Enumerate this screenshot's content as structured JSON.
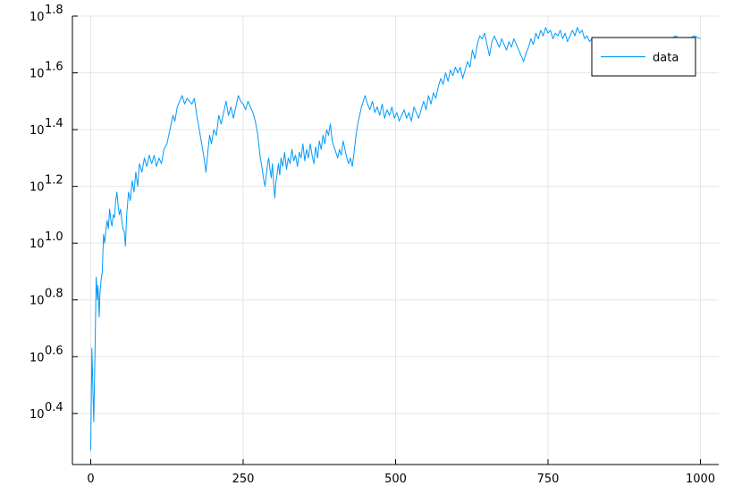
{
  "chart_data": {
    "type": "line",
    "xlim": [
      -30,
      1030
    ],
    "ylim": [
      0.22,
      1.8
    ],
    "y_scale": "log10",
    "grid": true,
    "legend_position": "top-right",
    "x_ticks": [
      {
        "value": 0,
        "label": "0"
      },
      {
        "value": 250,
        "label": "250"
      },
      {
        "value": 500,
        "label": "500"
      },
      {
        "value": 750,
        "label": "750"
      },
      {
        "value": 1000,
        "label": "1000"
      }
    ],
    "y_ticks": [
      {
        "value": 0.4,
        "base": "10",
        "exp": "0.4"
      },
      {
        "value": 0.6,
        "base": "10",
        "exp": "0.6"
      },
      {
        "value": 0.8,
        "base": "10",
        "exp": "0.8"
      },
      {
        "value": 1.0,
        "base": "10",
        "exp": "1.0"
      },
      {
        "value": 1.2,
        "base": "10",
        "exp": "1.2"
      },
      {
        "value": 1.4,
        "base": "10",
        "exp": "1.4"
      },
      {
        "value": 1.6,
        "base": "10",
        "exp": "1.6"
      },
      {
        "value": 1.8,
        "base": "10",
        "exp": "1.8"
      }
    ],
    "series": [
      {
        "name": "data",
        "color": "#009AFA",
        "points": [
          [
            0,
            0.27
          ],
          [
            2,
            0.63
          ],
          [
            4,
            0.45
          ],
          [
            5,
            0.37
          ],
          [
            7,
            0.6
          ],
          [
            9,
            0.88
          ],
          [
            11,
            0.8
          ],
          [
            12,
            0.85
          ],
          [
            14,
            0.74
          ],
          [
            15,
            0.82
          ],
          [
            17,
            0.87
          ],
          [
            19,
            0.9
          ],
          [
            21,
            1.03
          ],
          [
            23,
            1.0
          ],
          [
            25,
            1.05
          ],
          [
            27,
            1.08
          ],
          [
            29,
            1.05
          ],
          [
            31,
            1.12
          ],
          [
            33,
            1.08
          ],
          [
            35,
            1.06
          ],
          [
            37,
            1.1
          ],
          [
            39,
            1.09
          ],
          [
            41,
            1.15
          ],
          [
            43,
            1.18
          ],
          [
            45,
            1.13
          ],
          [
            47,
            1.1
          ],
          [
            49,
            1.12
          ],
          [
            51,
            1.08
          ],
          [
            53,
            1.05
          ],
          [
            55,
            1.04
          ],
          [
            57,
            0.99
          ],
          [
            59,
            1.1
          ],
          [
            62,
            1.18
          ],
          [
            65,
            1.15
          ],
          [
            68,
            1.22
          ],
          [
            71,
            1.18
          ],
          [
            74,
            1.25
          ],
          [
            77,
            1.2
          ],
          [
            80,
            1.28
          ],
          [
            84,
            1.25
          ],
          [
            88,
            1.3
          ],
          [
            92,
            1.27
          ],
          [
            96,
            1.31
          ],
          [
            100,
            1.28
          ],
          [
            104,
            1.31
          ],
          [
            108,
            1.27
          ],
          [
            112,
            1.3
          ],
          [
            116,
            1.28
          ],
          [
            120,
            1.33
          ],
          [
            125,
            1.35
          ],
          [
            130,
            1.4
          ],
          [
            135,
            1.45
          ],
          [
            138,
            1.43
          ],
          [
            142,
            1.48
          ],
          [
            146,
            1.5
          ],
          [
            150,
            1.52
          ],
          [
            154,
            1.49
          ],
          [
            158,
            1.51
          ],
          [
            162,
            1.5
          ],
          [
            166,
            1.49
          ],
          [
            170,
            1.51
          ],
          [
            174,
            1.45
          ],
          [
            178,
            1.4
          ],
          [
            182,
            1.35
          ],
          [
            186,
            1.3
          ],
          [
            189,
            1.25
          ],
          [
            192,
            1.32
          ],
          [
            195,
            1.38
          ],
          [
            198,
            1.35
          ],
          [
            202,
            1.4
          ],
          [
            206,
            1.38
          ],
          [
            210,
            1.45
          ],
          [
            214,
            1.42
          ],
          [
            218,
            1.46
          ],
          [
            222,
            1.5
          ],
          [
            226,
            1.45
          ],
          [
            230,
            1.48
          ],
          [
            234,
            1.44
          ],
          [
            238,
            1.48
          ],
          [
            242,
            1.52
          ],
          [
            246,
            1.5
          ],
          [
            250,
            1.49
          ],
          [
            254,
            1.47
          ],
          [
            258,
            1.5
          ],
          [
            262,
            1.48
          ],
          [
            266,
            1.46
          ],
          [
            270,
            1.43
          ],
          [
            274,
            1.38
          ],
          [
            278,
            1.3
          ],
          [
            280,
            1.28
          ],
          [
            282,
            1.25
          ],
          [
            284,
            1.22
          ],
          [
            286,
            1.2
          ],
          [
            288,
            1.24
          ],
          [
            290,
            1.28
          ],
          [
            292,
            1.3
          ],
          [
            294,
            1.26
          ],
          [
            296,
            1.23
          ],
          [
            298,
            1.28
          ],
          [
            300,
            1.21
          ],
          [
            302,
            1.16
          ],
          [
            304,
            1.22
          ],
          [
            306,
            1.25
          ],
          [
            308,
            1.28
          ],
          [
            310,
            1.24
          ],
          [
            312,
            1.3
          ],
          [
            315,
            1.27
          ],
          [
            318,
            1.32
          ],
          [
            321,
            1.26
          ],
          [
            324,
            1.3
          ],
          [
            327,
            1.28
          ],
          [
            330,
            1.33
          ],
          [
            333,
            1.29
          ],
          [
            336,
            1.31
          ],
          [
            339,
            1.27
          ],
          [
            342,
            1.32
          ],
          [
            345,
            1.3
          ],
          [
            348,
            1.35
          ],
          [
            351,
            1.29
          ],
          [
            354,
            1.33
          ],
          [
            357,
            1.3
          ],
          [
            360,
            1.35
          ],
          [
            363,
            1.31
          ],
          [
            366,
            1.28
          ],
          [
            369,
            1.34
          ],
          [
            372,
            1.3
          ],
          [
            375,
            1.36
          ],
          [
            378,
            1.33
          ],
          [
            381,
            1.38
          ],
          [
            384,
            1.35
          ],
          [
            387,
            1.4
          ],
          [
            390,
            1.38
          ],
          [
            393,
            1.42
          ],
          [
            396,
            1.36
          ],
          [
            399,
            1.34
          ],
          [
            402,
            1.32
          ],
          [
            405,
            1.3
          ],
          [
            408,
            1.33
          ],
          [
            411,
            1.31
          ],
          [
            414,
            1.36
          ],
          [
            417,
            1.33
          ],
          [
            420,
            1.3
          ],
          [
            423,
            1.28
          ],
          [
            426,
            1.3
          ],
          [
            429,
            1.27
          ],
          [
            432,
            1.32
          ],
          [
            435,
            1.38
          ],
          [
            438,
            1.42
          ],
          [
            441,
            1.45
          ],
          [
            444,
            1.48
          ],
          [
            447,
            1.5
          ],
          [
            450,
            1.52
          ],
          [
            454,
            1.49
          ],
          [
            458,
            1.47
          ],
          [
            462,
            1.5
          ],
          [
            466,
            1.46
          ],
          [
            470,
            1.48
          ],
          [
            474,
            1.45
          ],
          [
            478,
            1.49
          ],
          [
            482,
            1.44
          ],
          [
            486,
            1.47
          ],
          [
            490,
            1.45
          ],
          [
            494,
            1.48
          ],
          [
            498,
            1.44
          ],
          [
            502,
            1.46
          ],
          [
            506,
            1.43
          ],
          [
            510,
            1.45
          ],
          [
            514,
            1.47
          ],
          [
            518,
            1.44
          ],
          [
            522,
            1.46
          ],
          [
            526,
            1.43
          ],
          [
            530,
            1.48
          ],
          [
            534,
            1.46
          ],
          [
            538,
            1.44
          ],
          [
            542,
            1.47
          ],
          [
            546,
            1.5
          ],
          [
            550,
            1.47
          ],
          [
            554,
            1.52
          ],
          [
            558,
            1.49
          ],
          [
            562,
            1.53
          ],
          [
            566,
            1.51
          ],
          [
            570,
            1.55
          ],
          [
            574,
            1.58
          ],
          [
            578,
            1.56
          ],
          [
            582,
            1.6
          ],
          [
            586,
            1.57
          ],
          [
            590,
            1.61
          ],
          [
            594,
            1.59
          ],
          [
            598,
            1.62
          ],
          [
            602,
            1.6
          ],
          [
            606,
            1.62
          ],
          [
            610,
            1.58
          ],
          [
            614,
            1.61
          ],
          [
            618,
            1.64
          ],
          [
            622,
            1.62
          ],
          [
            626,
            1.68
          ],
          [
            630,
            1.65
          ],
          [
            634,
            1.7
          ],
          [
            638,
            1.73
          ],
          [
            642,
            1.72
          ],
          [
            646,
            1.74
          ],
          [
            650,
            1.7
          ],
          [
            654,
            1.66
          ],
          [
            658,
            1.71
          ],
          [
            662,
            1.73
          ],
          [
            666,
            1.71
          ],
          [
            670,
            1.69
          ],
          [
            674,
            1.72
          ],
          [
            678,
            1.7
          ],
          [
            682,
            1.68
          ],
          [
            686,
            1.71
          ],
          [
            690,
            1.69
          ],
          [
            694,
            1.72
          ],
          [
            698,
            1.7
          ],
          [
            702,
            1.68
          ],
          [
            706,
            1.66
          ],
          [
            710,
            1.64
          ],
          [
            714,
            1.67
          ],
          [
            718,
            1.69
          ],
          [
            722,
            1.72
          ],
          [
            726,
            1.7
          ],
          [
            730,
            1.74
          ],
          [
            734,
            1.72
          ],
          [
            738,
            1.75
          ],
          [
            742,
            1.73
          ],
          [
            746,
            1.76
          ],
          [
            750,
            1.74
          ],
          [
            754,
            1.75
          ],
          [
            758,
            1.72
          ],
          [
            762,
            1.74
          ],
          [
            766,
            1.73
          ],
          [
            770,
            1.75
          ],
          [
            774,
            1.72
          ],
          [
            778,
            1.74
          ],
          [
            782,
            1.71
          ],
          [
            786,
            1.73
          ],
          [
            790,
            1.75
          ],
          [
            794,
            1.73
          ],
          [
            798,
            1.76
          ],
          [
            802,
            1.74
          ],
          [
            806,
            1.75
          ],
          [
            810,
            1.72
          ],
          [
            814,
            1.73
          ],
          [
            818,
            1.71
          ],
          [
            822,
            1.72
          ]
        ],
        "tail_points": [
          [
            950,
            1.72
          ],
          [
            960,
            1.73
          ],
          [
            970,
            1.71
          ],
          [
            980,
            1.72
          ],
          [
            990,
            1.73
          ],
          [
            1000,
            1.72
          ]
        ]
      }
    ]
  }
}
